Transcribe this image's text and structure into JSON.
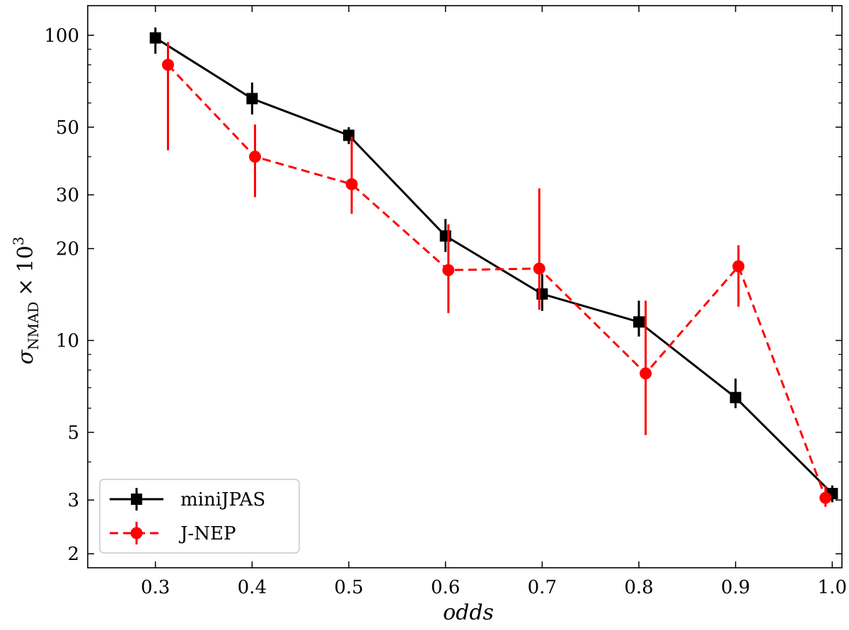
{
  "chart_data": {
    "type": "line",
    "title": "",
    "xlabel": "odds",
    "ylabel": {
      "main": "σ",
      "subscript": "NMAD",
      "times": "×",
      "base": "10",
      "superscript": "3"
    },
    "xscale": "linear",
    "yscale": "log",
    "xlim": [
      0.23,
      1.01
    ],
    "ylim": [
      1.8,
      125
    ],
    "x_ticks": [
      0.3,
      0.4,
      0.5,
      0.6,
      0.7,
      0.8,
      0.9,
      1.0
    ],
    "x_tick_labels": [
      "0.3",
      "0.4",
      "0.5",
      "0.6",
      "0.7",
      "0.8",
      "0.9",
      "1.0"
    ],
    "y_ticks": [
      2,
      3,
      5,
      10,
      20,
      30,
      50,
      100
    ],
    "y_tick_labels": [
      "2",
      "3",
      "5",
      "10",
      "20",
      "30",
      "50",
      "100"
    ],
    "y_minor_ticks": [
      4,
      6,
      7,
      8,
      9,
      40,
      60,
      70,
      80,
      90
    ],
    "grid": false,
    "legend": {
      "position": "lower-left"
    },
    "series": [
      {
        "name": "miniJPAS",
        "color": "#000000",
        "marker": "square",
        "linestyle": "solid",
        "x": [
          0.3,
          0.4,
          0.5,
          0.6,
          0.7,
          0.8,
          0.9,
          1.0
        ],
        "y": [
          98,
          62,
          47,
          22,
          14.2,
          11.5,
          6.5,
          3.15
        ],
        "y_err_low": [
          87,
          55,
          44,
          19.5,
          12.5,
          10.3,
          6.0,
          2.95
        ],
        "y_err_high": [
          106,
          70,
          50,
          25,
          16.5,
          13.5,
          7.5,
          3.35
        ]
      },
      {
        "name": "J-NEP",
        "color": "#ff0000",
        "marker": "circle",
        "linestyle": "dashed",
        "x": [
          0.313,
          0.403,
          0.503,
          0.603,
          0.697,
          0.807,
          0.903,
          0.993
        ],
        "y": [
          80,
          40,
          32.5,
          17,
          17.2,
          7.8,
          17.5,
          3.05
        ],
        "y_err_low": [
          42,
          29.5,
          26,
          12.3,
          12.6,
          4.9,
          12.9,
          2.85
        ],
        "y_err_high": [
          95,
          51,
          46.5,
          24,
          31.5,
          13.5,
          20.5,
          3.35
        ]
      }
    ]
  }
}
